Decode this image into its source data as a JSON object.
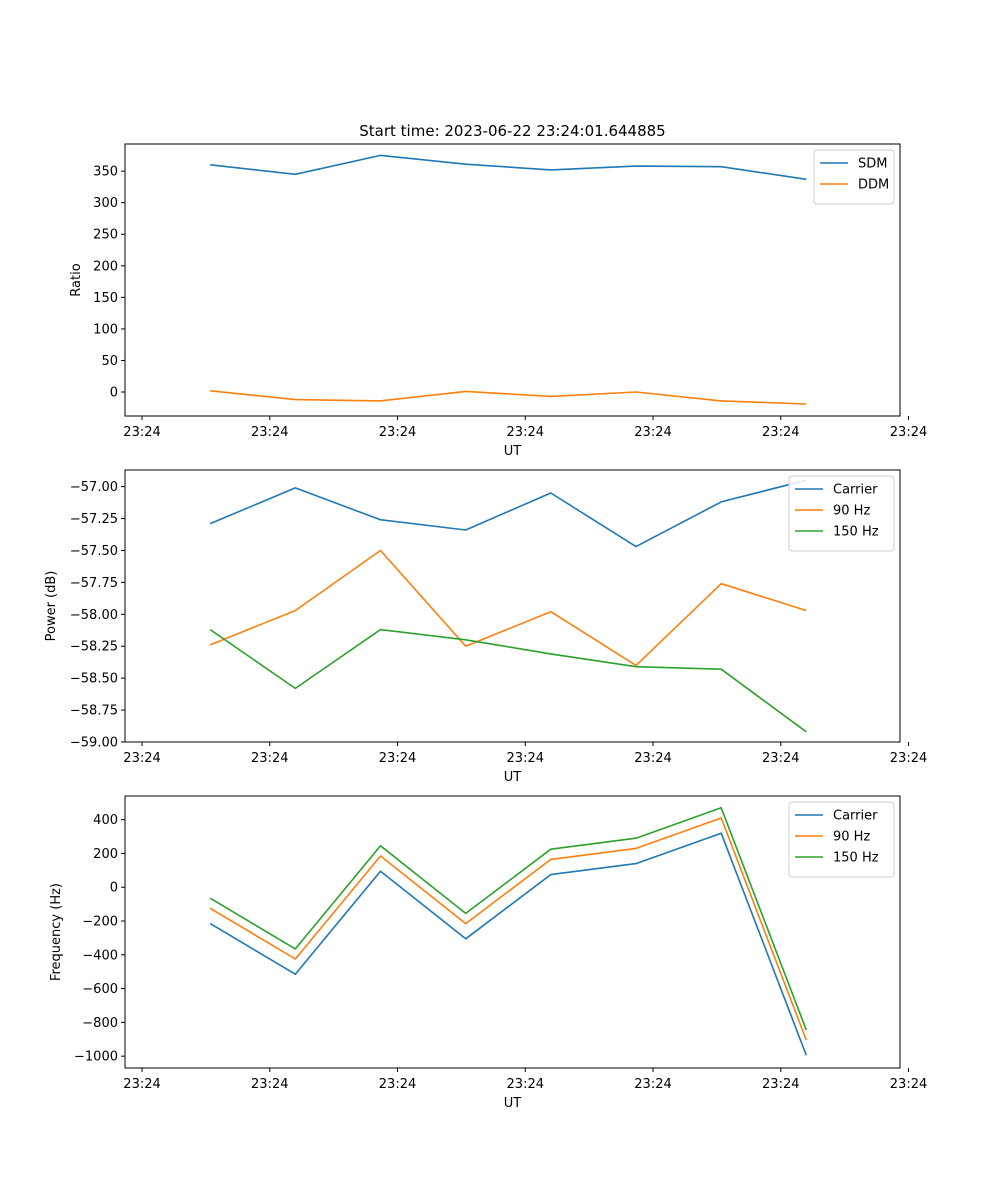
{
  "figure": {
    "title": "Start time: 2023-06-22 23:24:01.644885"
  },
  "chart_data": [
    {
      "type": "line",
      "title": "Start time: 2023-06-22 23:24:01.644885",
      "xlabel": "UT",
      "ylabel": "Ratio",
      "x": [
        1.8,
        2.8,
        3.8,
        4.8,
        5.8,
        6.8,
        7.8,
        8.8
      ],
      "xlim": [
        0.8,
        9.9
      ],
      "xticks": [
        1,
        2.5,
        4,
        5.5,
        7,
        8.5,
        10
      ],
      "xtick_labels": [
        "23:24",
        "23:24",
        "23:24",
        "23:24",
        "23:24",
        "23:24",
        "23:24"
      ],
      "ylim": [
        -38,
        393
      ],
      "yticks": [
        0,
        50,
        100,
        150,
        200,
        250,
        300,
        350
      ],
      "ytick_labels": [
        "0",
        "50",
        "100",
        "150",
        "200",
        "250",
        "300",
        "350"
      ],
      "legend": "top-right",
      "grid": false,
      "series": [
        {
          "name": "SDM",
          "color": "#1f77b4",
          "values": [
            360,
            345,
            375,
            361,
            352,
            358,
            357,
            337
          ]
        },
        {
          "name": "DDM",
          "color": "#ff7f0e",
          "values": [
            2,
            -12,
            -14,
            1,
            -7,
            0,
            -14,
            -19
          ]
        }
      ]
    },
    {
      "type": "line",
      "xlabel": "UT",
      "ylabel": "Power (dB)",
      "x": [
        1.8,
        2.8,
        3.8,
        4.8,
        5.8,
        6.8,
        7.8,
        8.8
      ],
      "xlim": [
        0.8,
        9.9
      ],
      "xticks": [
        1,
        2.5,
        4,
        5.5,
        7,
        8.5,
        10
      ],
      "xtick_labels": [
        "23:24",
        "23:24",
        "23:24",
        "23:24",
        "23:24",
        "23:24",
        "23:24"
      ],
      "ylim": [
        -59.0,
        -56.87
      ],
      "yticks": [
        -59.0,
        -58.75,
        -58.5,
        -58.25,
        -58.0,
        -57.75,
        -57.5,
        -57.25,
        -57.0
      ],
      "ytick_labels": [
        "−59.00",
        "−58.75",
        "−58.50",
        "−58.25",
        "−58.00",
        "−57.75",
        "−57.50",
        "−57.25",
        "−57.00"
      ],
      "legend": "top-right",
      "grid": false,
      "series": [
        {
          "name": "Carrier",
          "color": "#1f77b4",
          "values": [
            -57.29,
            -57.01,
            -57.26,
            -57.34,
            -57.05,
            -57.47,
            -57.12,
            -56.95
          ]
        },
        {
          "name": "90 Hz",
          "color": "#ff7f0e",
          "values": [
            -58.24,
            -57.97,
            -57.5,
            -58.25,
            -57.98,
            -58.4,
            -57.76,
            -57.97
          ]
        },
        {
          "name": "150 Hz",
          "color": "#2ca02c",
          "values": [
            -58.12,
            -58.58,
            -58.12,
            -58.2,
            -58.31,
            -58.41,
            -58.43,
            -58.92
          ]
        }
      ]
    },
    {
      "type": "line",
      "xlabel": "UT",
      "ylabel": "Frequency (Hz)",
      "x": [
        1.8,
        2.8,
        3.8,
        4.8,
        5.8,
        6.8,
        7.8,
        8.8
      ],
      "xlim": [
        0.8,
        9.9
      ],
      "xticks": [
        1,
        2.5,
        4,
        5.5,
        7,
        8.5,
        10
      ],
      "xtick_labels": [
        "23:24",
        "23:24",
        "23:24",
        "23:24",
        "23:24",
        "23:24",
        "23:24"
      ],
      "ylim": [
        -1070,
        540
      ],
      "yticks": [
        -1000,
        -800,
        -600,
        -400,
        -200,
        0,
        200,
        400
      ],
      "ytick_labels": [
        "−1000",
        "−800",
        "−600",
        "−400",
        "−200",
        "0",
        "200",
        "400"
      ],
      "legend": "top-right",
      "grid": false,
      "series": [
        {
          "name": "Carrier",
          "color": "#1f77b4",
          "values": [
            -215,
            -515,
            95,
            -305,
            75,
            140,
            320,
            -995
          ]
        },
        {
          "name": "90 Hz",
          "color": "#ff7f0e",
          "values": [
            -125,
            -425,
            185,
            -215,
            165,
            230,
            410,
            -905
          ]
        },
        {
          "name": "150 Hz",
          "color": "#2ca02c",
          "values": [
            -65,
            -365,
            245,
            -155,
            225,
            290,
            470,
            -845
          ]
        }
      ]
    }
  ]
}
